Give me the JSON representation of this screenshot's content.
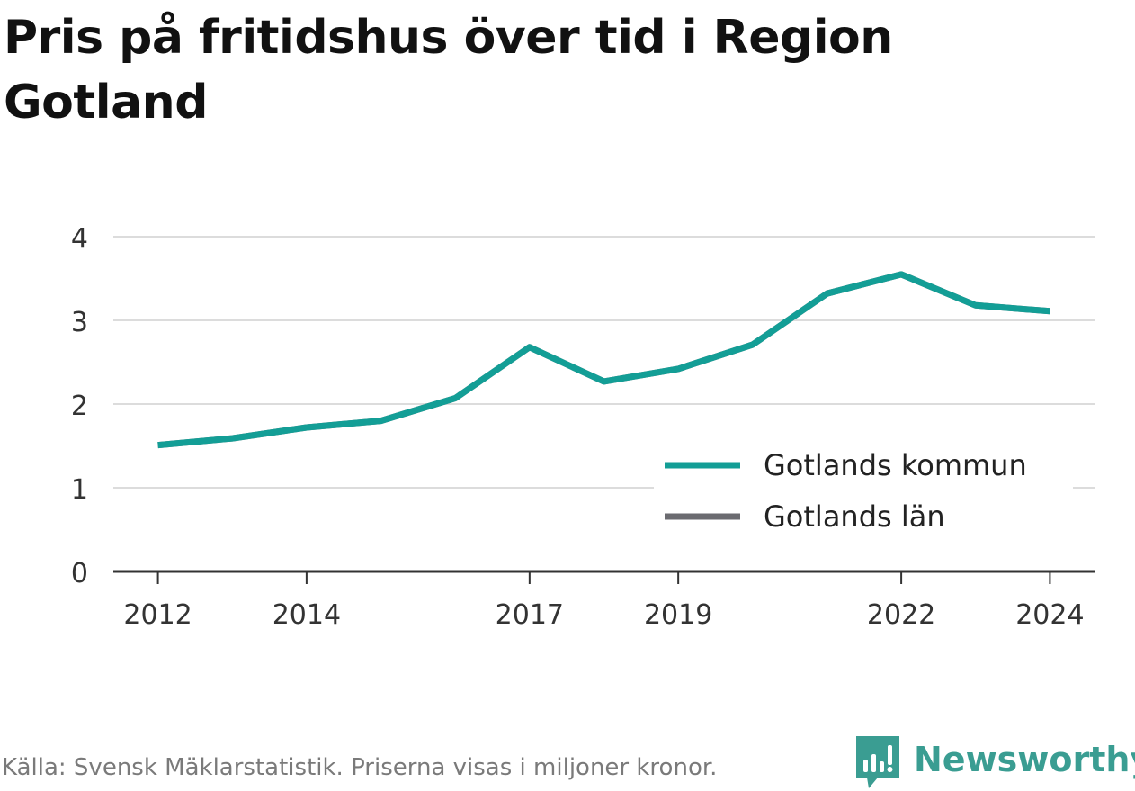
{
  "title": "Pris på fritidshus över tid i Region Gotland",
  "footer": {
    "source": "Källa: Svensk Mäklarstatistik. Priserna visas i miljoner kronor.",
    "brand": "Newsworthy",
    "brand_icon": "newsworthy-logo-icon",
    "brand_color": "#3a9d92"
  },
  "chart_data": {
    "type": "line",
    "title": "Pris på fritidshus över tid i Region Gotland",
    "xlabel": "",
    "ylabel": "",
    "x": [
      2012,
      2013,
      2014,
      2015,
      2016,
      2017,
      2018,
      2019,
      2020,
      2021,
      2022,
      2023,
      2024
    ],
    "x_tick_labels": [
      "2012",
      "2014",
      "2017",
      "2019",
      "2022",
      "2024"
    ],
    "x_ticks": [
      2012,
      2014,
      2017,
      2019,
      2022,
      2024
    ],
    "xlim": [
      2011.4,
      2024.6
    ],
    "ylim": [
      0,
      4
    ],
    "y_ticks": [
      0,
      1,
      2,
      3,
      4
    ],
    "y_tick_labels": [
      "0",
      "1",
      "2",
      "3",
      "4"
    ],
    "grid": true,
    "legend_position": "bottom-right",
    "series": [
      {
        "name": "Gotlands kommun",
        "color": "#139e96",
        "values": [
          1.51,
          1.59,
          1.72,
          1.8,
          2.07,
          2.68,
          2.27,
          2.42,
          2.71,
          3.32,
          3.55,
          3.18,
          3.11
        ]
      },
      {
        "name": "Gotlands län",
        "color": "#6b6b70",
        "values": [
          1.51,
          1.59,
          1.72,
          1.8,
          2.07,
          2.68,
          2.27,
          2.42,
          2.71,
          3.32,
          3.55,
          3.18,
          3.11
        ]
      }
    ]
  }
}
